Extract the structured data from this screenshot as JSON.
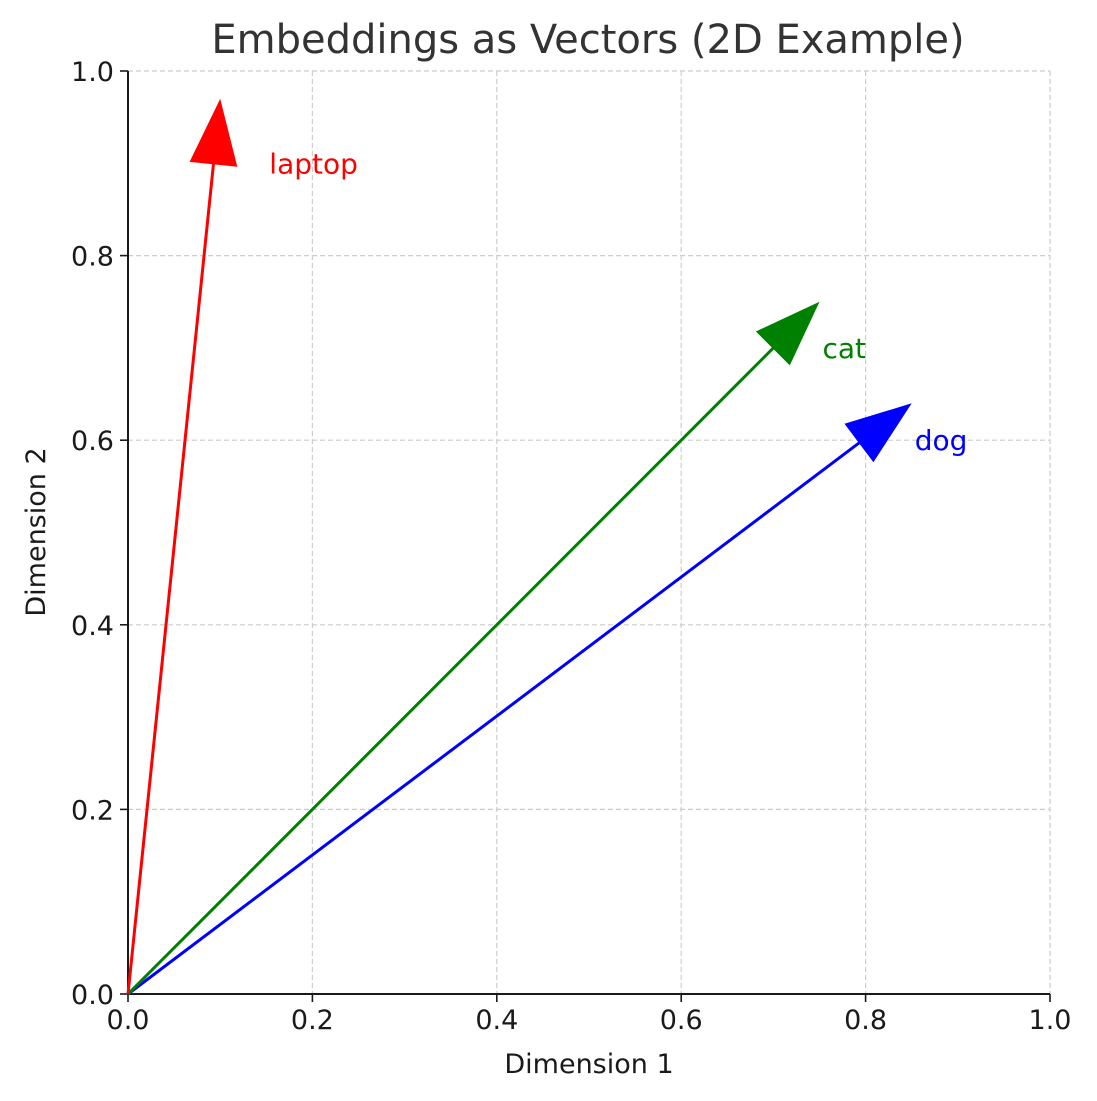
{
  "chart_data": {
    "type": "quiver",
    "title": "Embeddings as Vectors (2D Example)",
    "xlabel": "Dimension 1",
    "ylabel": "Dimension 2",
    "xlim": [
      0,
      1
    ],
    "ylim": [
      0,
      1
    ],
    "xticks": [
      "0.0",
      "0.2",
      "0.4",
      "0.6",
      "0.8",
      "1.0"
    ],
    "yticks": [
      "0.0",
      "0.2",
      "0.4",
      "0.6",
      "0.8",
      "1.0"
    ],
    "grid": true,
    "vectors": [
      {
        "name": "dog",
        "x": 0.85,
        "y": 0.64,
        "color": "#0000ff",
        "label_x": 0.85,
        "label_y": 0.6
      },
      {
        "name": "cat",
        "x": 0.75,
        "y": 0.75,
        "color": "#008000",
        "label_x": 0.75,
        "label_y": 0.7
      },
      {
        "name": "laptop",
        "x": 0.1,
        "y": 0.97,
        "color": "#ff0000",
        "label_x": 0.15,
        "label_y": 0.9
      }
    ]
  }
}
